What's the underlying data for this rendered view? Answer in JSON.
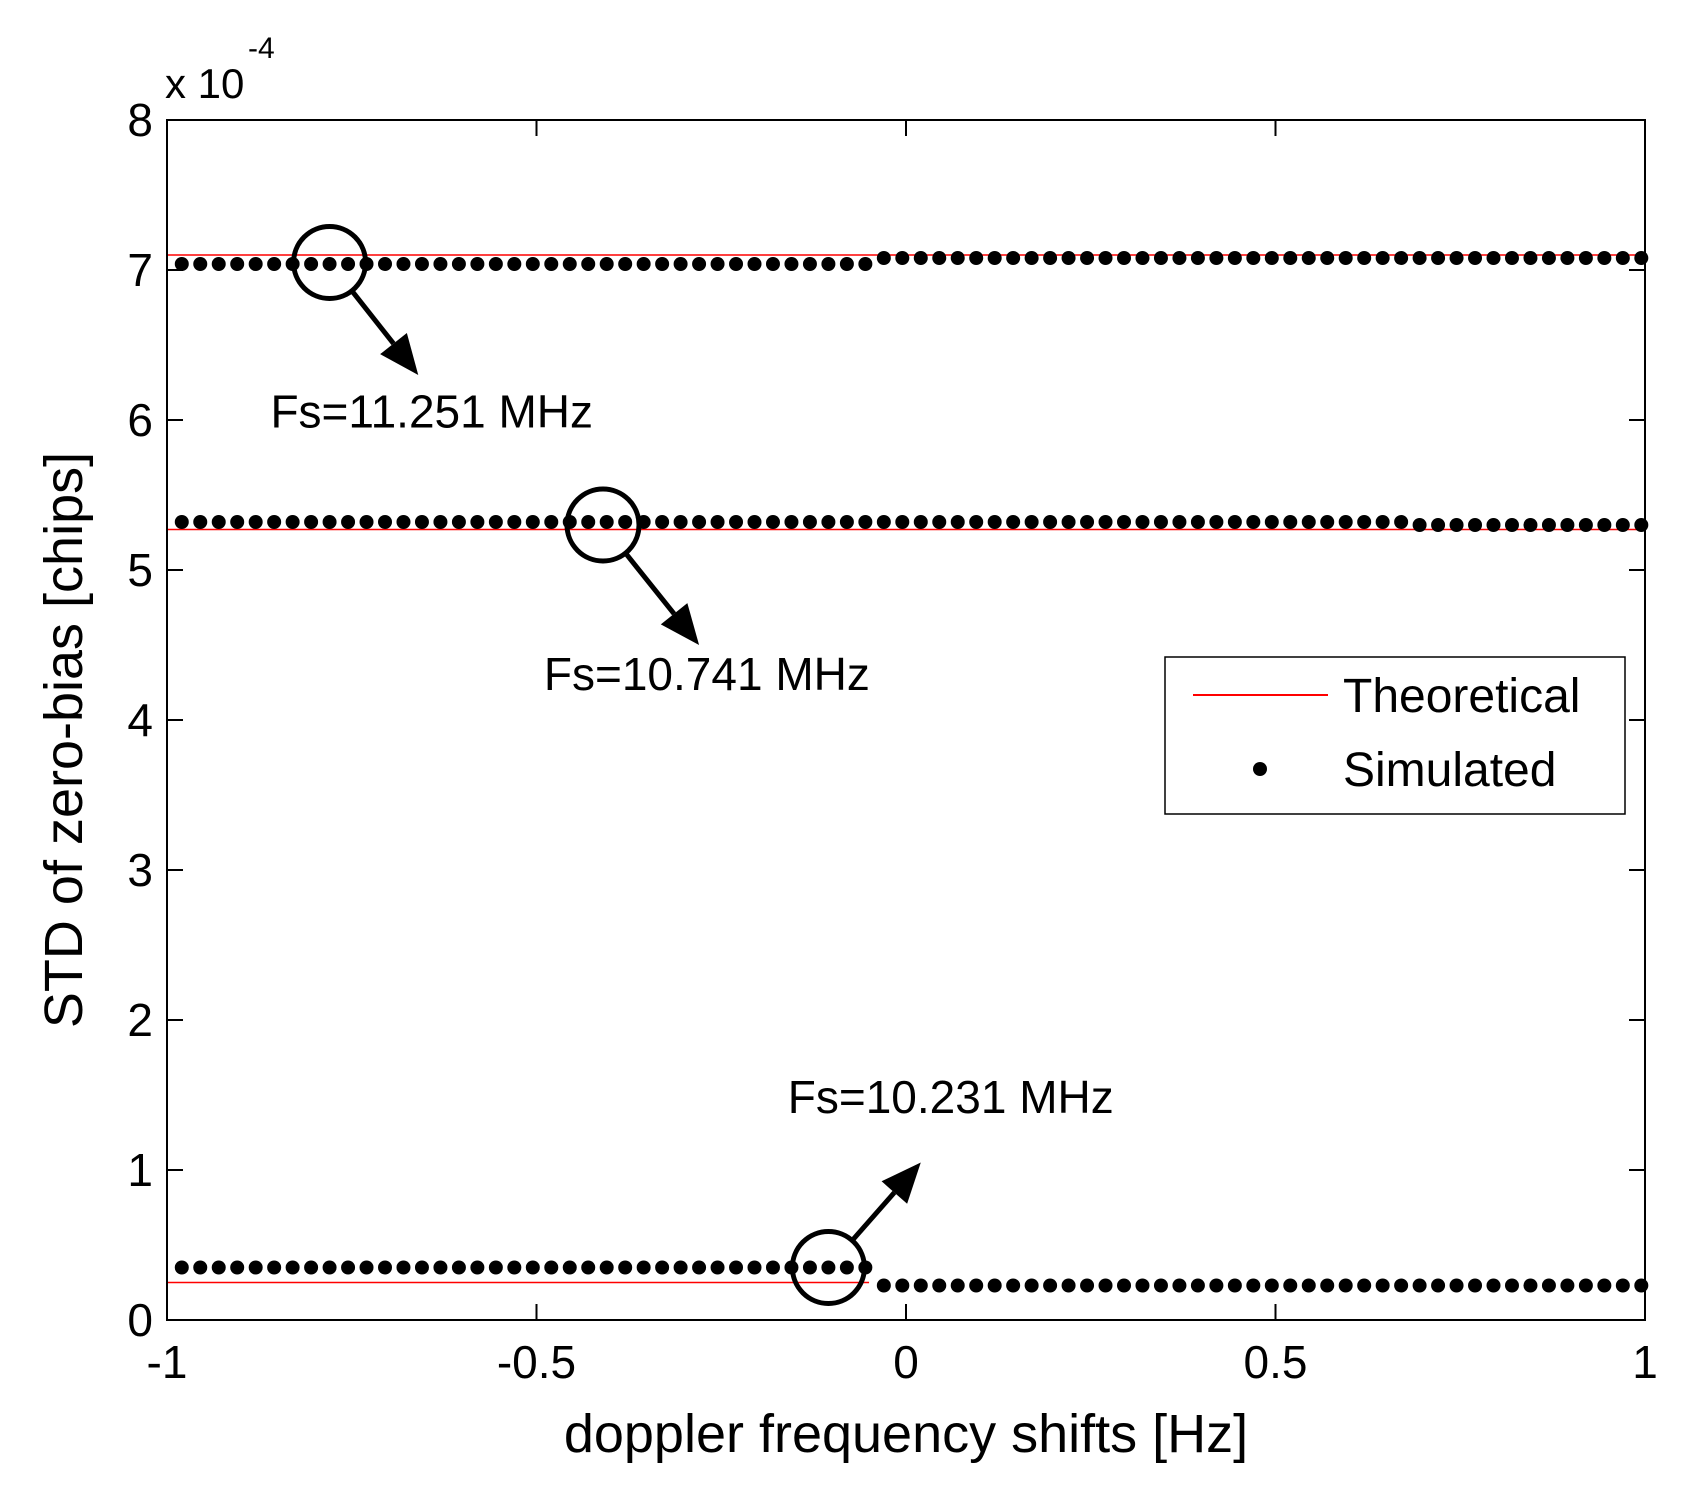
{
  "chart_data": {
    "type": "line",
    "xlabel": "doppler frequency shifts [Hz]",
    "ylabel": "STD of zero-bias [chips]",
    "y_multiplier": {
      "base": "x 10",
      "exponent": "-4"
    },
    "xlim": [
      -1,
      1
    ],
    "ylim": [
      0,
      8
    ],
    "x_ticks": [
      -1,
      -0.5,
      0,
      0.5,
      1
    ],
    "x_tick_labels": [
      "-1",
      "-0.5",
      "0",
      "0.5",
      "1"
    ],
    "y_ticks": [
      0,
      1,
      2,
      3,
      4,
      5,
      6,
      7,
      8
    ],
    "y_tick_labels": [
      "0",
      "1",
      "2",
      "3",
      "4",
      "5",
      "6",
      "7",
      "8"
    ],
    "grid": false,
    "legend_position": "right-middle",
    "legend": [
      {
        "label": "Theoretical",
        "style": "line",
        "color": "#ff0000"
      },
      {
        "label": "Simulated",
        "style": "marker",
        "color": "#000000"
      }
    ],
    "theoretical": [
      {
        "x_range": [
          -1,
          1
        ],
        "y": 7.1
      },
      {
        "x_range": [
          -1,
          1
        ],
        "y": 5.27
      },
      {
        "x_range": [
          -1,
          -0.05
        ],
        "y": 0.25
      }
    ],
    "simulated": [
      {
        "x_start": -0.98,
        "x_end": 1.0,
        "step": 0.025,
        "segments": [
          {
            "until": -0.05,
            "y": 7.04
          },
          {
            "until": 1.0,
            "y": 7.08
          }
        ]
      },
      {
        "x_start": -0.98,
        "x_end": 1.0,
        "step": 0.025,
        "segments": [
          {
            "until": 0.67,
            "y": 5.32
          },
          {
            "until": 1.0,
            "y": 5.3
          }
        ]
      },
      {
        "x_start": -0.98,
        "x_end": 1.0,
        "step": 0.025,
        "segments": [
          {
            "until": -0.05,
            "y": 0.35
          },
          {
            "until": 1.0,
            "y": 0.23
          }
        ]
      }
    ],
    "annotations": [
      {
        "text": "Fs=11.251 MHz",
        "circle_at": [
          -0.78,
          7.05
        ],
        "arrow_to": [
          -0.66,
          6.3
        ],
        "label_at": [
          -0.86,
          5.95
        ]
      },
      {
        "text": "Fs=10.741 MHz",
        "circle_at": [
          -0.41,
          5.3
        ],
        "arrow_to": [
          -0.28,
          4.5
        ],
        "label_at": [
          -0.49,
          4.2
        ]
      },
      {
        "text": "Fs=10.231 MHz",
        "circle_at": [
          -0.105,
          0.35
        ],
        "arrow_to": [
          0.02,
          1.05
        ],
        "label_at": [
          -0.16,
          1.38
        ]
      }
    ]
  }
}
